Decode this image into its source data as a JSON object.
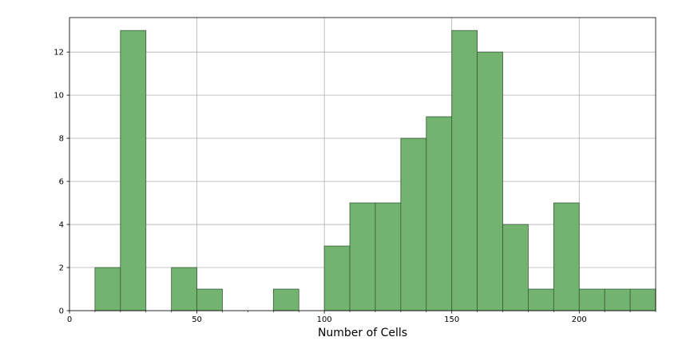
{
  "chart_data": {
    "type": "bar",
    "subtype": "histogram",
    "title": "",
    "xlabel": "Number of Cells",
    "ylabel": "",
    "xlim": [
      0,
      230
    ],
    "ylim": [
      0,
      13.6
    ],
    "xticks": [
      0,
      50,
      100,
      150,
      200
    ],
    "yticks": [
      0,
      2,
      4,
      6,
      8,
      10,
      12
    ],
    "grid": true,
    "bar_color": "#71b36f",
    "edge_color": "#3c5a3b",
    "bins": [
      {
        "start": 10,
        "end": 20,
        "count": 2
      },
      {
        "start": 20,
        "end": 30,
        "count": 13
      },
      {
        "start": 30,
        "end": 40,
        "count": 0
      },
      {
        "start": 40,
        "end": 50,
        "count": 2
      },
      {
        "start": 50,
        "end": 60,
        "count": 1
      },
      {
        "start": 60,
        "end": 70,
        "count": 0
      },
      {
        "start": 70,
        "end": 80,
        "count": 0
      },
      {
        "start": 80,
        "end": 90,
        "count": 1
      },
      {
        "start": 90,
        "end": 100,
        "count": 0
      },
      {
        "start": 100,
        "end": 110,
        "count": 3
      },
      {
        "start": 110,
        "end": 120,
        "count": 5
      },
      {
        "start": 120,
        "end": 130,
        "count": 5
      },
      {
        "start": 130,
        "end": 140,
        "count": 8
      },
      {
        "start": 140,
        "end": 150,
        "count": 9
      },
      {
        "start": 150,
        "end": 160,
        "count": 13
      },
      {
        "start": 160,
        "end": 170,
        "count": 12
      },
      {
        "start": 170,
        "end": 180,
        "count": 4
      },
      {
        "start": 180,
        "end": 190,
        "count": 1
      },
      {
        "start": 190,
        "end": 200,
        "count": 5
      },
      {
        "start": 200,
        "end": 210,
        "count": 1
      },
      {
        "start": 210,
        "end": 220,
        "count": 1
      },
      {
        "start": 220,
        "end": 230,
        "count": 1
      }
    ]
  }
}
